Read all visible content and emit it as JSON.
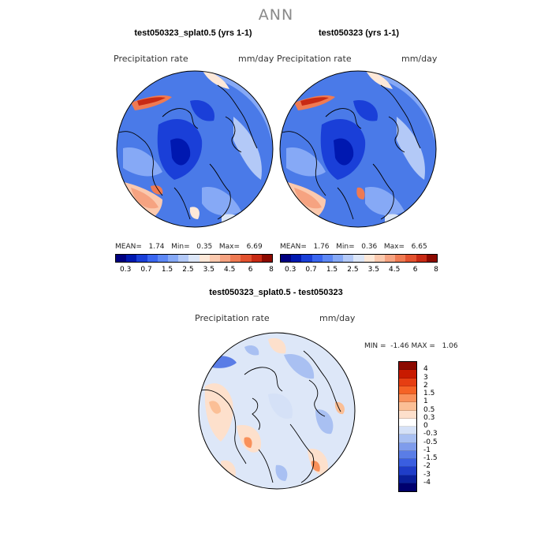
{
  "main_title": "ANN",
  "panels": [
    {
      "title": "test050323_splat0.5 (yrs 1-1)",
      "variable": "Precipitation rate",
      "units": "mm/day",
      "mean_label": "MEAN=",
      "mean": "1.74",
      "min_label": "Min=",
      "min": "0.35",
      "max_label": "Max=",
      "max": "6.69"
    },
    {
      "title": "test050323 (yrs 1-1)",
      "variable": "Precipitation rate",
      "units": "mm/day",
      "mean_label": "MEAN=",
      "mean": "1.76",
      "min_label": "Min=",
      "min": "0.36",
      "max_label": "Max=",
      "max": "6.65"
    }
  ],
  "diff_panel": {
    "title": "test050323_splat0.5 - test050323",
    "variable": "Precipitation rate",
    "units": "mm/day",
    "min_label": "MIN =",
    "min": "-1.46",
    "max_label": "MAX =",
    "max": "1.06"
  },
  "colorbar_abs": {
    "colors": [
      "#000080",
      "#0018b0",
      "#1a3fd8",
      "#3a66f0",
      "#5d88f5",
      "#86a9f6",
      "#b3c9f7",
      "#dce6f7",
      "#fde8d8",
      "#fbc9ae",
      "#f6a381",
      "#ef7a52",
      "#e3522f",
      "#c82a14",
      "#8c0a00"
    ],
    "tick_labels": [
      "0.3",
      "0.7",
      "1.5",
      "2.5",
      "3.5",
      "4.5",
      "6",
      "8"
    ]
  },
  "colorbar_diff": {
    "colors": [
      "#8c0a00",
      "#c81a00",
      "#e63e12",
      "#f56326",
      "#f9915b",
      "#fbbf96",
      "#fde0cc",
      "#ffffff",
      "#d5e1f7",
      "#a9c0f2",
      "#7f9cec",
      "#5a7de6",
      "#3a5ee0",
      "#1f3dc8",
      "#0a1f9a",
      "#00006e"
    ],
    "tick_labels": [
      "4",
      "3",
      "2",
      "1.5",
      "1",
      "0.5",
      "0.3",
      "0",
      "-0.3",
      "-0.5",
      "-1",
      "-1.5",
      "-2",
      "-3",
      "-4"
    ]
  }
}
